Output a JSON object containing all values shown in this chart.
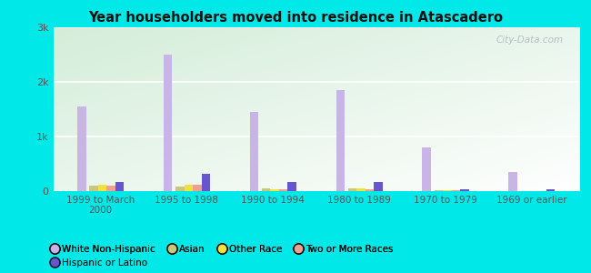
{
  "title": "Year householders moved into residence in Atascadero",
  "categories": [
    "1999 to March\n2000",
    "1995 to 1998",
    "1990 to 1994",
    "1980 to 1989",
    "1970 to 1979",
    "1969 or earlier"
  ],
  "series": {
    "White Non-Hispanic": {
      "values": [
        1550,
        2500,
        1450,
        1850,
        800,
        350
      ],
      "color": "#c9b4e8"
    },
    "Asian": {
      "values": [
        100,
        90,
        45,
        45,
        18,
        8
      ],
      "color": "#c8c87a"
    },
    "Other Race": {
      "values": [
        120,
        110,
        28,
        45,
        12,
        8
      ],
      "color": "#f0e040"
    },
    "Two or More Races": {
      "values": [
        95,
        125,
        28,
        38,
        12,
        8
      ],
      "color": "#f0a090"
    },
    "Hispanic or Latino": {
      "values": [
        175,
        310,
        175,
        175,
        28,
        28
      ],
      "color": "#6655cc"
    }
  },
  "ylim": [
    0,
    3000
  ],
  "yticks": [
    0,
    1000,
    2000,
    3000
  ],
  "ytick_labels": [
    "0",
    "1k",
    "2k",
    "3k"
  ],
  "outer_background": "#00e8e8",
  "watermark": "City-Data.com",
  "legend_order": [
    "White Non-Hispanic",
    "Asian",
    "Other Race",
    "Two or More Races",
    "Hispanic or Latino"
  ]
}
